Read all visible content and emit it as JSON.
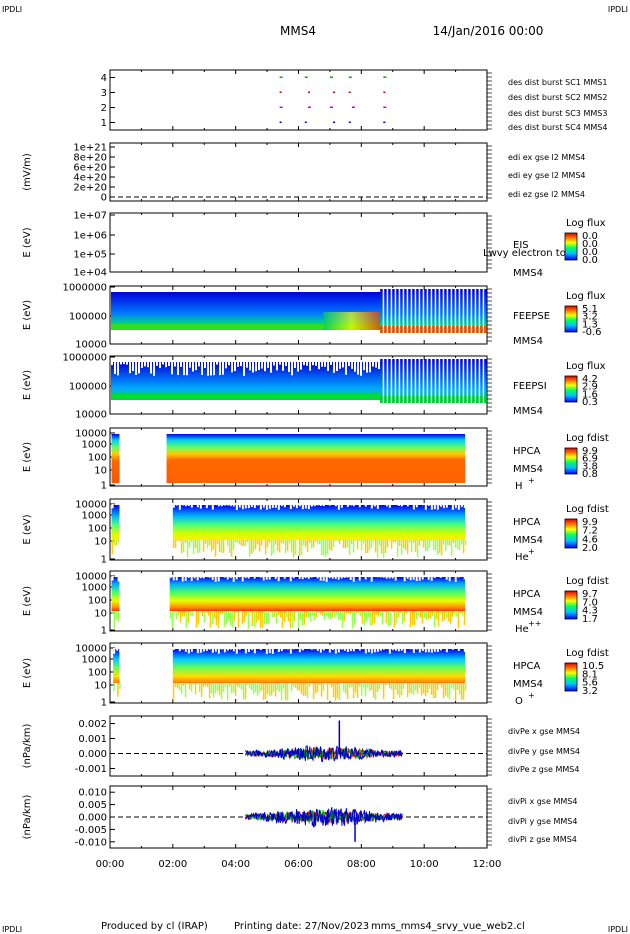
{
  "header": {
    "corner_tl": "IPDLI",
    "corner_tr": "IPDLI",
    "corner_bl": "IPDLI",
    "corner_br": "IPDLI",
    "spacecraft": "MMS4",
    "date": "14/Jan/2016 00:00"
  },
  "footer": {
    "produced": "Produced by cl (IRAP)",
    "printing": "Printing date: 27/Nov/2023",
    "script": "mms_mms4_srvy_vue_web2.cl"
  },
  "x_axis": {
    "ticks": [
      "00:00",
      "02:00",
      "04:00",
      "06:00",
      "08:00",
      "10:00",
      "12:00"
    ],
    "range_hours": [
      0,
      12
    ]
  },
  "colors": {
    "mms1": "#0000cc",
    "mms2": "#cc00cc",
    "mms3": "#cc0000",
    "mms4": "#00aa00",
    "blue": "#0000cc",
    "green": "#00aa00",
    "red": "#cc0000"
  },
  "panels": {
    "burst": {
      "yticks": [
        "4",
        "3",
        "2",
        "1"
      ],
      "legend": [
        "des dist burst SC1 MMS1",
        "des dist burst SC2 MMS2",
        "des dist burst SC3 MMS3",
        "des dist burst SC4 MMS4"
      ]
    },
    "edi": {
      "ylabel": "(mV/m)",
      "yticks": [
        "1e+21",
        "8e+20",
        "6e+20",
        "4e+20",
        "2e+20",
        "0"
      ],
      "legend": [
        "edi ex gse l2 MMS4",
        "edi ey gse l2 MMS4",
        "edi ez gse l2 MMS4"
      ]
    },
    "eis": {
      "ylabel": "E (eV)",
      "yticks": [
        "1e+07",
        "1e+06",
        "1e+05",
        "1e+04"
      ],
      "inst": "EIS",
      "sub": "MMS4",
      "overlay": "Lwvy electron to",
      "cbar_title": "Log flux",
      "cbar_ticks": [
        "0.0",
        "0.0",
        "0.0",
        "0.0"
      ]
    },
    "feepse": {
      "ylabel": "E (eV)",
      "yticks": [
        "1000000",
        "100000",
        "10000"
      ],
      "inst": "FEEPSE",
      "sub": "MMS4",
      "cbar_title": "Log flux",
      "cbar_ticks": [
        "5.1",
        "3.2",
        "1.3",
        "-0.6"
      ]
    },
    "feepsi": {
      "ylabel": "E (eV)",
      "yticks": [
        "1000000",
        "100000",
        "10000"
      ],
      "inst": "FEEPSI",
      "sub": "MMS4",
      "cbar_title": "Log flux",
      "cbar_ticks": [
        "4.2",
        "2.9",
        "1.6",
        "0.3"
      ]
    },
    "hpca_h": {
      "ylabel": "E (eV)",
      "yticks": [
        "10000",
        "1000",
        "100",
        "10",
        "1"
      ],
      "inst": "HPCA",
      "sub": "MMS4",
      "species": "H",
      "charge": "+",
      "cbar_title": "Log fdist",
      "cbar_ticks": [
        "9.9",
        "6.9",
        "3.8",
        "0.8"
      ]
    },
    "hpca_he": {
      "ylabel": "E (eV)",
      "yticks": [
        "10000",
        "1000",
        "100",
        "10",
        "1"
      ],
      "inst": "HPCA",
      "sub": "MMS4",
      "species": "He",
      "charge": "+",
      "cbar_title": "Log fdist",
      "cbar_ticks": [
        "9.9",
        "7.2",
        "4.6",
        "2.0"
      ]
    },
    "hpca_he2": {
      "ylabel": "E (eV)",
      "yticks": [
        "10000",
        "1000",
        "100",
        "10",
        "1"
      ],
      "inst": "HPCA",
      "sub": "MMS4",
      "species": "He",
      "charge": "++",
      "cbar_title": "Log fdist",
      "cbar_ticks": [
        "9.7",
        "7.0",
        "4.3",
        "1.7"
      ]
    },
    "hpca_o": {
      "ylabel": "E (eV)",
      "yticks": [
        "10000",
        "1000",
        "100",
        "10",
        "1"
      ],
      "inst": "HPCA",
      "sub": "MMS4",
      "species": "O",
      "charge": "+",
      "cbar_title": "Log fdist",
      "cbar_ticks": [
        "10.5",
        "8.1",
        "5.6",
        "3.2"
      ]
    },
    "divpe": {
      "ylabel": "(nPa/km)",
      "yticks": [
        "0.002",
        "0.001",
        "0.000",
        "-0.001"
      ],
      "legend": [
        "divPe x gse MMS4",
        "divPe y gse MMS4",
        "divPe z gse MMS4"
      ]
    },
    "divpi": {
      "ylabel": "(nPa/km)",
      "yticks": [
        "0.010",
        "0.005",
        "0.000",
        "-0.005",
        "-0.010"
      ],
      "legend": [
        "divPi x gse MMS4",
        "divPi y gse MMS4",
        "divPi z gse MMS4"
      ]
    }
  },
  "chart_data": [
    {
      "type": "scatter",
      "panel": "burst",
      "ylim": [
        0.5,
        4.5
      ],
      "series": [
        {
          "name": "des dist burst SC1 MMS1",
          "y": 1,
          "x": [
            5.4,
            6.2,
            7.1,
            7.6,
            8.7
          ]
        },
        {
          "name": "des dist burst SC2 MMS2",
          "y": 2,
          "x": [
            5.4,
            6.3,
            7.0,
            7.7,
            8.7
          ]
        },
        {
          "name": "des dist burst SC3 MMS3",
          "y": 3,
          "x": [
            5.4,
            6.3,
            7.1,
            7.6,
            8.7
          ]
        },
        {
          "name": "des dist burst SC4 MMS4",
          "y": 4,
          "x": [
            5.4,
            6.2,
            7.0,
            7.6,
            8.7
          ]
        }
      ]
    },
    {
      "type": "heatmap",
      "panel": "feepse",
      "ylim_log10": [
        4,
        6
      ],
      "x_coverage": [
        0,
        12
      ],
      "high_flux_band_log10": [
        4.5,
        5.3
      ],
      "burst_stripes_start": 8.6
    },
    {
      "type": "heatmap",
      "panel": "feepsi",
      "ylim_log10": [
        4,
        6
      ],
      "x_coverage": [
        0,
        12
      ],
      "high_flux_band_log10": [
        4.5,
        5.0
      ],
      "burst_stripes_start": 8.6
    },
    {
      "type": "heatmap",
      "panel": "hpca_h",
      "ylim_log10": [
        0,
        4
      ],
      "x_coverage": [
        [
          0.05,
          0.3
        ],
        [
          1.8,
          11.3
        ]
      ]
    },
    {
      "type": "heatmap",
      "panel": "hpca_he",
      "ylim_log10": [
        0,
        4
      ],
      "x_coverage": [
        [
          0.05,
          0.3
        ],
        [
          2.0,
          11.3
        ]
      ]
    },
    {
      "type": "heatmap",
      "panel": "hpca_he2",
      "ylim_log10": [
        0,
        4
      ],
      "x_coverage": [
        [
          0.05,
          0.3
        ],
        [
          1.9,
          11.3
        ]
      ]
    },
    {
      "type": "heatmap",
      "panel": "hpca_o",
      "ylim_log10": [
        0,
        4
      ],
      "x_coverage": [
        [
          0.1,
          0.3
        ],
        [
          2.0,
          11.3
        ]
      ]
    },
    {
      "type": "line",
      "panel": "divpe",
      "ylim": [
        -0.0015,
        0.0025
      ],
      "x_range": [
        4.3,
        9.3
      ],
      "series": [
        {
          "name": "divPe x gse MMS4",
          "amplitude": 0.0003
        },
        {
          "name": "divPe y gse MMS4",
          "amplitude": 0.0003
        },
        {
          "name": "divPe z gse MMS4",
          "amplitude": 0.0004,
          "spike": {
            "x": 7.3,
            "value": 0.0022
          }
        }
      ]
    },
    {
      "type": "line",
      "panel": "divpi",
      "ylim": [
        -0.0125,
        0.0125
      ],
      "x_range": [
        4.3,
        9.3
      ],
      "series": [
        {
          "name": "divPi x gse MMS4",
          "amplitude": 0.002
        },
        {
          "name": "divPi y gse MMS4",
          "amplitude": 0.002
        },
        {
          "name": "divPi z gse MMS4",
          "amplitude": 0.003,
          "spike": {
            "x": 7.8,
            "value": -0.01
          }
        }
      ]
    }
  ]
}
